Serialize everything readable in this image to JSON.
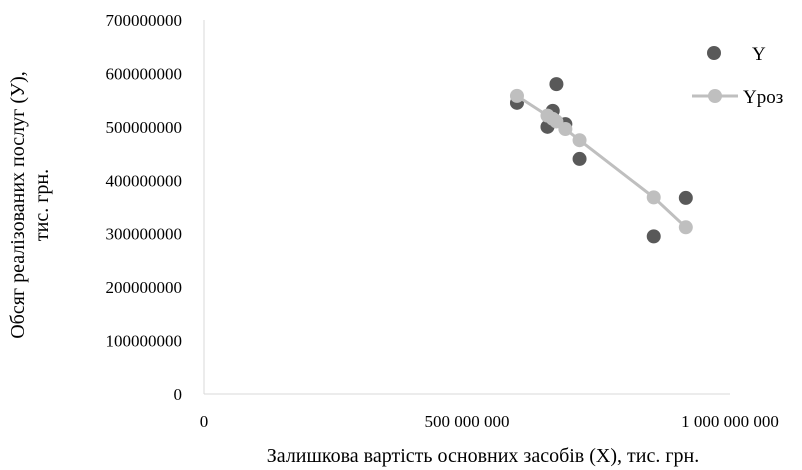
{
  "chart_data": {
    "type": "scatter",
    "xlabel": "Залишкова вартість основних засобів (X), тис. грн.",
    "ylabel_line1": "Обсяг реалізованих послуг (У),",
    "ylabel_line2": "тис. грн.",
    "xlim": [
      0,
      1000000000
    ],
    "ylim": [
      0,
      700000000
    ],
    "x_ticks": [
      0,
      500000000,
      1000000000
    ],
    "x_tick_labels": [
      "0",
      "500 000 000",
      "1 000 000 000"
    ],
    "y_ticks": [
      0,
      100000000,
      200000000,
      300000000,
      400000000,
      500000000,
      600000000,
      700000000
    ],
    "y_tick_labels": [
      "0",
      "100000000",
      "200000000",
      "300000000",
      "400000000",
      "500000000",
      "600000000",
      "700000000"
    ],
    "grid": false,
    "legend_position": "right",
    "series": [
      {
        "name": "Y",
        "style": "markers",
        "color": "#595959",
        "points": [
          {
            "x": 595000000,
            "y": 545000000
          },
          {
            "x": 653000000,
            "y": 500000000
          },
          {
            "x": 663000000,
            "y": 530000000
          },
          {
            "x": 670000000,
            "y": 580000000
          },
          {
            "x": 687000000,
            "y": 505000000
          },
          {
            "x": 714000000,
            "y": 440000000
          },
          {
            "x": 855000000,
            "y": 295000000
          },
          {
            "x": 916000000,
            "y": 367000000
          }
        ]
      },
      {
        "name": "Yроз",
        "style": "line-markers",
        "color": "#bfbfbf",
        "points": [
          {
            "x": 595000000,
            "y": 558000000
          },
          {
            "x": 653000000,
            "y": 521000000
          },
          {
            "x": 663000000,
            "y": 515000000
          },
          {
            "x": 670000000,
            "y": 510000000
          },
          {
            "x": 687000000,
            "y": 496000000
          },
          {
            "x": 714000000,
            "y": 475000000
          },
          {
            "x": 855000000,
            "y": 368000000
          },
          {
            "x": 916000000,
            "y": 312000000
          }
        ]
      }
    ]
  }
}
